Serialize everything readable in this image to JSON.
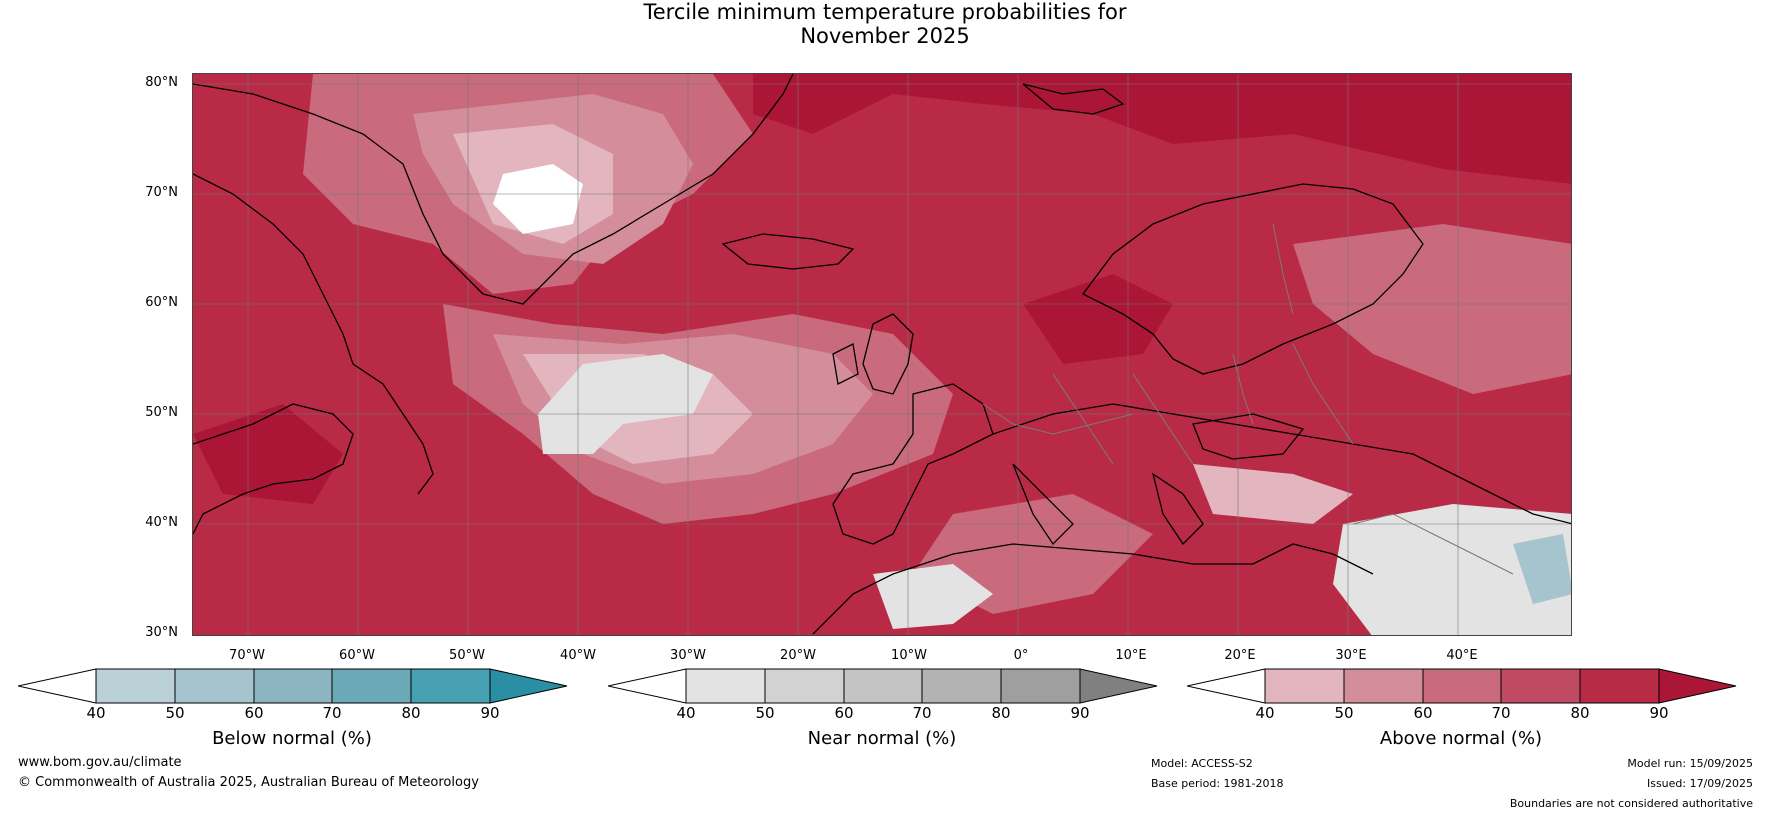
{
  "title_line1": "Tercile minimum temperature probabilities for",
  "title_line2": "November 2025",
  "map": {
    "lat_labels": [
      "80°N",
      "70°N",
      "60°N",
      "50°N",
      "40°N",
      "30°N"
    ],
    "lon_labels": [
      "70°W",
      "60°W",
      "50°W",
      "40°W",
      "30°W",
      "20°W",
      "10°W",
      "0°",
      "10°E",
      "20°E",
      "30°E",
      "40°E"
    ],
    "dominant_category": "Above normal",
    "colors": {
      "above": [
        "#e2b5bf",
        "#d48d9b",
        "#c96b7d",
        "#c04a62",
        "#b92a47",
        "#ab1636"
      ],
      "near": [
        "#ffffff",
        "#e3e3e3",
        "#d2d2d2",
        "#c4c4c4",
        "#b3b3b3",
        "#9f9f9f",
        "#808080"
      ],
      "below": [
        "#ffffff",
        "#bad1d8",
        "#a6c4cd",
        "#8cb4c1",
        "#6ba8b8",
        "#47a1b3",
        "#2a8fa5"
      ],
      "land_outline": "#000000",
      "borders": "#7a7a7a",
      "grid": "#777777"
    }
  },
  "colorbars": [
    {
      "label": "Below normal (%)",
      "ticks": [
        "40",
        "50",
        "60",
        "70",
        "80",
        "90"
      ],
      "colors": [
        "#ffffff",
        "#bad1d8",
        "#a6c4cd",
        "#8cb4c1",
        "#6ba8b8",
        "#47a1b3",
        "#2a8fa5"
      ]
    },
    {
      "label": "Near normal (%)",
      "ticks": [
        "40",
        "50",
        "60",
        "70",
        "80",
        "90"
      ],
      "colors": [
        "#ffffff",
        "#e3e3e3",
        "#d2d2d2",
        "#c4c4c4",
        "#b3b3b3",
        "#9f9f9f",
        "#808080"
      ]
    },
    {
      "label": "Above normal (%)",
      "ticks": [
        "40",
        "50",
        "60",
        "70",
        "80",
        "90"
      ],
      "colors": [
        "#ffffff",
        "#e2b5bf",
        "#d48d9b",
        "#c96b7d",
        "#c04a62",
        "#b92a47",
        "#ab1636"
      ]
    }
  ],
  "footer": {
    "website": "www.bom.gov.au/climate",
    "copyright": "© Commonwealth of Australia 2025, Australian Bureau of Meteorology",
    "model": "Model: ACCESS-S2",
    "base_period": "Base period: 1981-2018",
    "model_run": "Model run: 15/09/2025",
    "issued": "Issued: 17/09/2025",
    "disclaimer": "Boundaries are not considered authoritative"
  }
}
